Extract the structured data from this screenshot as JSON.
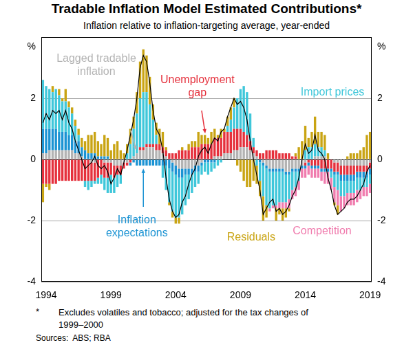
{
  "chart_data": {
    "type": "bar",
    "title": "Tradable Inflation Model Estimated Contributions*",
    "subtitle": "Inflation relative to inflation-targeting average, year-ended",
    "y_label": "%",
    "y2_label": "%",
    "stacked": true,
    "grid": true,
    "ylim": [
      -4,
      4
    ],
    "yticks": [
      -4,
      -2,
      0,
      2
    ],
    "y2lim": [
      -4,
      4
    ],
    "y2ticks": [
      -4,
      -2,
      0,
      2
    ],
    "categories": [
      null,
      "1994",
      null,
      null,
      null,
      null,
      null,
      null,
      null,
      null,
      null,
      null,
      null,
      null,
      null,
      null,
      null,
      null,
      null,
      null,
      null,
      "1999",
      null,
      null,
      null,
      null,
      null,
      null,
      null,
      null,
      null,
      null,
      null,
      null,
      null,
      null,
      null,
      null,
      null,
      null,
      null,
      "2004",
      null,
      null,
      null,
      null,
      null,
      null,
      null,
      null,
      null,
      null,
      null,
      null,
      null,
      null,
      null,
      null,
      null,
      null,
      null,
      "2009",
      null,
      null,
      null,
      null,
      null,
      null,
      null,
      null,
      null,
      null,
      null,
      null,
      null,
      null,
      null,
      null,
      null,
      null,
      null,
      "2014",
      null,
      null,
      null,
      null,
      null,
      null,
      null,
      null,
      null,
      null,
      null,
      null,
      null,
      null,
      null,
      null,
      null,
      null,
      null,
      "2019"
    ],
    "series": [
      {
        "name": "Lagged tradable inflation",
        "type": "bar",
        "color": "#b3b3b3",
        "values": [
          0.2,
          0.2,
          0.3,
          0.3,
          0.3,
          0.3,
          0.3,
          0.3,
          0.3,
          0.3,
          0.2,
          0.2,
          0.1,
          0.0,
          0.0,
          -0.1,
          -0.1,
          0.0,
          0.0,
          -0.1,
          -0.1,
          -0.1,
          -0.2,
          -0.2,
          -0.2,
          -0.1,
          -0.1,
          0.0,
          0.1,
          0.2,
          0.3,
          0.3,
          0.4,
          0.4,
          0.4,
          0.3,
          0.3,
          0.2,
          0.1,
          0.0,
          -0.1,
          -0.2,
          -0.3,
          -0.3,
          -0.3,
          -0.3,
          -0.3,
          -0.2,
          -0.2,
          -0.1,
          0.0,
          0.0,
          0.0,
          0.1,
          0.1,
          0.1,
          0.2,
          0.2,
          0.2,
          0.3,
          0.3,
          0.4,
          0.4,
          0.4,
          0.3,
          0.2,
          0.1,
          0.0,
          -0.1,
          -0.2,
          -0.3,
          -0.3,
          -0.3,
          -0.3,
          -0.3,
          -0.4,
          -0.4,
          -0.3,
          -0.3,
          -0.3,
          -0.2,
          -0.1,
          0.0,
          0.0,
          0.1,
          0.1,
          0.1,
          0.1,
          0.0,
          0.0,
          -0.1,
          -0.1,
          -0.2,
          -0.2,
          -0.2,
          -0.2,
          -0.2,
          -0.2,
          -0.2,
          -0.2,
          -0.2,
          -0.1
        ]
      },
      {
        "name": "Unemployment gap",
        "type": "bar",
        "color": "#e5303c",
        "values": [
          -0.8,
          -0.8,
          -0.8,
          -0.8,
          -0.8,
          -0.7,
          -0.7,
          -0.7,
          -0.7,
          -0.7,
          -0.7,
          -0.7,
          -0.7,
          -0.7,
          -0.7,
          -0.6,
          -0.6,
          -0.6,
          -0.5,
          -0.5,
          -0.5,
          -0.4,
          -0.4,
          -0.3,
          -0.3,
          -0.2,
          -0.1,
          -0.1,
          0.0,
          0.0,
          0.1,
          0.1,
          0.1,
          0.1,
          0.1,
          0.2,
          0.2,
          0.2,
          0.2,
          0.2,
          0.2,
          0.2,
          0.3,
          0.3,
          0.3,
          0.3,
          0.4,
          0.4,
          0.4,
          0.5,
          0.5,
          0.5,
          0.5,
          0.6,
          0.6,
          0.6,
          0.7,
          0.7,
          0.7,
          0.7,
          0.7,
          0.6,
          0.5,
          0.4,
          0.3,
          0.2,
          0.2,
          0.2,
          0.2,
          0.3,
          0.3,
          0.3,
          0.3,
          0.2,
          0.2,
          0.2,
          0.2,
          0.1,
          0.1,
          0.0,
          0.0,
          -0.1,
          -0.1,
          -0.2,
          -0.2,
          -0.2,
          -0.3,
          -0.3,
          -0.3,
          -0.3,
          -0.3,
          -0.3,
          -0.3,
          -0.3,
          -0.3,
          -0.3,
          -0.3,
          -0.2,
          -0.2,
          -0.2,
          -0.2,
          -0.2
        ]
      },
      {
        "name": "Inflation expectations",
        "type": "bar",
        "color": "#1b93d3",
        "values": [
          0.8,
          0.8,
          0.7,
          0.7,
          0.7,
          0.6,
          0.6,
          0.6,
          0.5,
          0.5,
          0.4,
          0.4,
          0.3,
          0.3,
          0.2,
          0.2,
          0.2,
          0.1,
          0.1,
          0.1,
          0.1,
          0.0,
          0.0,
          0.0,
          0.0,
          0.0,
          0.0,
          -0.1,
          -0.1,
          -0.2,
          -0.2,
          -0.2,
          -0.2,
          -0.2,
          -0.2,
          -0.2,
          -0.2,
          -0.2,
          -0.2,
          -0.3,
          -0.3,
          -0.3,
          -0.3,
          -0.3,
          -0.2,
          -0.2,
          -0.2,
          -0.2,
          -0.2,
          -0.1,
          -0.1,
          -0.1,
          -0.1,
          -0.1,
          0.0,
          0.0,
          0.0,
          0.0,
          0.0,
          0.0,
          0.0,
          0.0,
          0.0,
          0.0,
          0.0,
          0.0,
          0.0,
          -0.1,
          -0.1,
          -0.1,
          -0.1,
          -0.1,
          -0.1,
          -0.1,
          -0.1,
          -0.1,
          -0.1,
          -0.1,
          -0.1,
          -0.1,
          -0.1,
          -0.1,
          -0.1,
          -0.1,
          -0.1,
          -0.1,
          -0.1,
          -0.1,
          -0.1,
          -0.1,
          -0.1,
          -0.1,
          -0.2,
          -0.2,
          -0.2,
          -0.2,
          -0.2,
          -0.2,
          -0.2,
          -0.2,
          -0.2,
          -0.2
        ]
      },
      {
        "name": "Import prices",
        "type": "bar",
        "color": "#3fc7da",
        "values": [
          1.6,
          1.4,
          1.3,
          1.2,
          1.3,
          1.2,
          1.0,
          1.0,
          0.9,
          0.7,
          0.5,
          0.2,
          0.0,
          -0.2,
          -0.3,
          -0.2,
          -0.1,
          -0.2,
          -0.3,
          -0.4,
          -0.5,
          -0.6,
          -0.5,
          -0.4,
          -0.3,
          0.0,
          0.2,
          0.5,
          0.9,
          1.3,
          1.6,
          1.8,
          1.7,
          1.3,
          0.8,
          0.3,
          0.0,
          -0.4,
          -0.8,
          -1.1,
          -1.3,
          -1.4,
          -1.3,
          -1.2,
          -1.0,
          -0.8,
          -0.6,
          -0.5,
          -0.4,
          -0.3,
          -0.3,
          -0.4,
          -0.3,
          -0.2,
          -0.2,
          -0.1,
          0.0,
          0.2,
          0.4,
          0.7,
          1.0,
          1.3,
          1.5,
          1.4,
          0.9,
          0.3,
          -0.2,
          -0.6,
          -1.0,
          -1.2,
          -1.2,
          -1.1,
          -1.1,
          -1.0,
          -1.0,
          -0.9,
          -0.8,
          -0.6,
          -0.5,
          -0.3,
          0.0,
          0.3,
          0.4,
          0.4,
          0.4,
          0.3,
          0.3,
          0.2,
          0.0,
          -0.2,
          -0.4,
          -0.5,
          -0.5,
          -0.5,
          -0.4,
          -0.4,
          -0.4,
          -0.4,
          -0.4,
          -0.3,
          -0.3,
          -0.3
        ]
      },
      {
        "name": "Competition",
        "type": "bar",
        "color": "#f07cae",
        "values": [
          0.0,
          0.0,
          0.0,
          0.0,
          0.0,
          0.0,
          0.0,
          0.0,
          0.0,
          0.0,
          0.0,
          0.0,
          0.0,
          0.0,
          0.0,
          0.0,
          0.0,
          0.0,
          0.0,
          0.0,
          0.0,
          0.0,
          0.0,
          0.0,
          0.0,
          0.0,
          0.0,
          0.0,
          0.0,
          0.0,
          0.0,
          0.0,
          0.0,
          0.0,
          0.0,
          0.0,
          0.0,
          0.0,
          0.0,
          0.0,
          0.0,
          0.0,
          0.0,
          0.0,
          0.0,
          0.0,
          0.0,
          0.0,
          0.0,
          0.0,
          0.0,
          0.0,
          0.0,
          0.0,
          0.0,
          0.0,
          0.0,
          0.0,
          0.0,
          0.0,
          0.0,
          0.0,
          0.0,
          0.0,
          0.0,
          0.0,
          0.0,
          0.0,
          0.0,
          0.0,
          -0.1,
          -0.1,
          -0.1,
          -0.2,
          -0.2,
          -0.2,
          -0.3,
          -0.3,
          -0.3,
          -0.3,
          -0.3,
          -0.3,
          -0.3,
          -0.3,
          -0.3,
          -0.3,
          -0.3,
          -0.4,
          -0.4,
          -0.4,
          -0.5,
          -0.5,
          -0.5,
          -0.4,
          -0.4,
          -0.4,
          -0.4,
          -0.4,
          -0.3,
          -0.3,
          -0.3,
          -0.3
        ]
      },
      {
        "name": "Residuals",
        "type": "bar",
        "color": "#c9a413",
        "values": [
          -0.6,
          -0.1,
          -0.2,
          0.2,
          0.0,
          0.2,
          0.1,
          0.4,
          0.2,
          0.2,
          0.2,
          0.2,
          0.3,
          0.3,
          0.6,
          0.6,
          0.7,
          0.5,
          0.4,
          0.7,
          0.6,
          0.3,
          0.5,
          0.6,
          0.3,
          0.2,
          0.3,
          0.5,
          0.4,
          0.7,
          1.2,
          1.4,
          1.2,
          0.9,
          0.5,
          0.4,
          0.5,
          0.5,
          0.1,
          -0.1,
          -0.2,
          -0.2,
          -0.2,
          0.1,
          0.0,
          0.2,
          0.2,
          0.2,
          0.5,
          0.3,
          0.3,
          0.2,
          0.4,
          0.3,
          0.1,
          0.3,
          0.1,
          0.3,
          0.4,
          0.3,
          -0.2,
          -0.4,
          -0.7,
          -0.9,
          -0.9,
          -0.7,
          -0.6,
          -0.5,
          -0.8,
          -0.4,
          0.0,
          0.0,
          -0.4,
          -0.2,
          -0.4,
          -0.3,
          -0.1,
          0.0,
          0.1,
          0.4,
          0.6,
          0.8,
          0.3,
          0.5,
          0.9,
          0.5,
          0.5,
          0.5,
          0.2,
          0.0,
          -0.1,
          -0.3,
          0.0,
          0.0,
          0.1,
          0.2,
          0.2,
          0.2,
          0.3,
          0.4,
          0.8,
          0.9
        ]
      },
      {
        "type": "line",
        "color": "#000000",
        "values": [
          1.2,
          1.5,
          1.3,
          1.6,
          1.5,
          1.6,
          1.3,
          1.6,
          1.2,
          1.0,
          0.6,
          0.3,
          0.0,
          -0.3,
          -0.2,
          -0.1,
          0.1,
          -0.2,
          -0.3,
          -0.2,
          -0.4,
          -0.8,
          -0.6,
          -0.3,
          -0.5,
          -0.1,
          0.3,
          0.8,
          1.3,
          2.0,
          3.0,
          3.4,
          3.2,
          2.5,
          1.6,
          1.0,
          0.8,
          0.3,
          -0.6,
          -1.3,
          -1.7,
          -1.9,
          -1.8,
          -1.4,
          -1.2,
          -0.8,
          -0.5,
          -0.3,
          0.1,
          0.3,
          0.4,
          0.2,
          0.5,
          0.7,
          0.6,
          0.9,
          1.0,
          1.4,
          1.7,
          2.0,
          1.8,
          1.9,
          1.7,
          1.3,
          0.6,
          0.0,
          -0.5,
          -1.0,
          -1.8,
          -1.6,
          -1.4,
          -1.3,
          -1.7,
          -1.6,
          -1.8,
          -1.7,
          -1.5,
          -1.2,
          -1.0,
          -0.6,
          0.0,
          0.5,
          0.2,
          0.3,
          0.8,
          0.3,
          0.2,
          0.0,
          -0.6,
          -1.0,
          -1.5,
          -1.8,
          -1.7,
          -1.6,
          -1.4,
          -1.3,
          -1.3,
          -1.2,
          -1.0,
          -0.8,
          -0.4,
          -0.2
        ]
      }
    ],
    "footnote": {
      "marker": "*",
      "text": "Excludes volatiles and tobacco; adjusted for the tax changes of 1999–2000"
    },
    "sources": "Sources:  ABS; RBA"
  }
}
